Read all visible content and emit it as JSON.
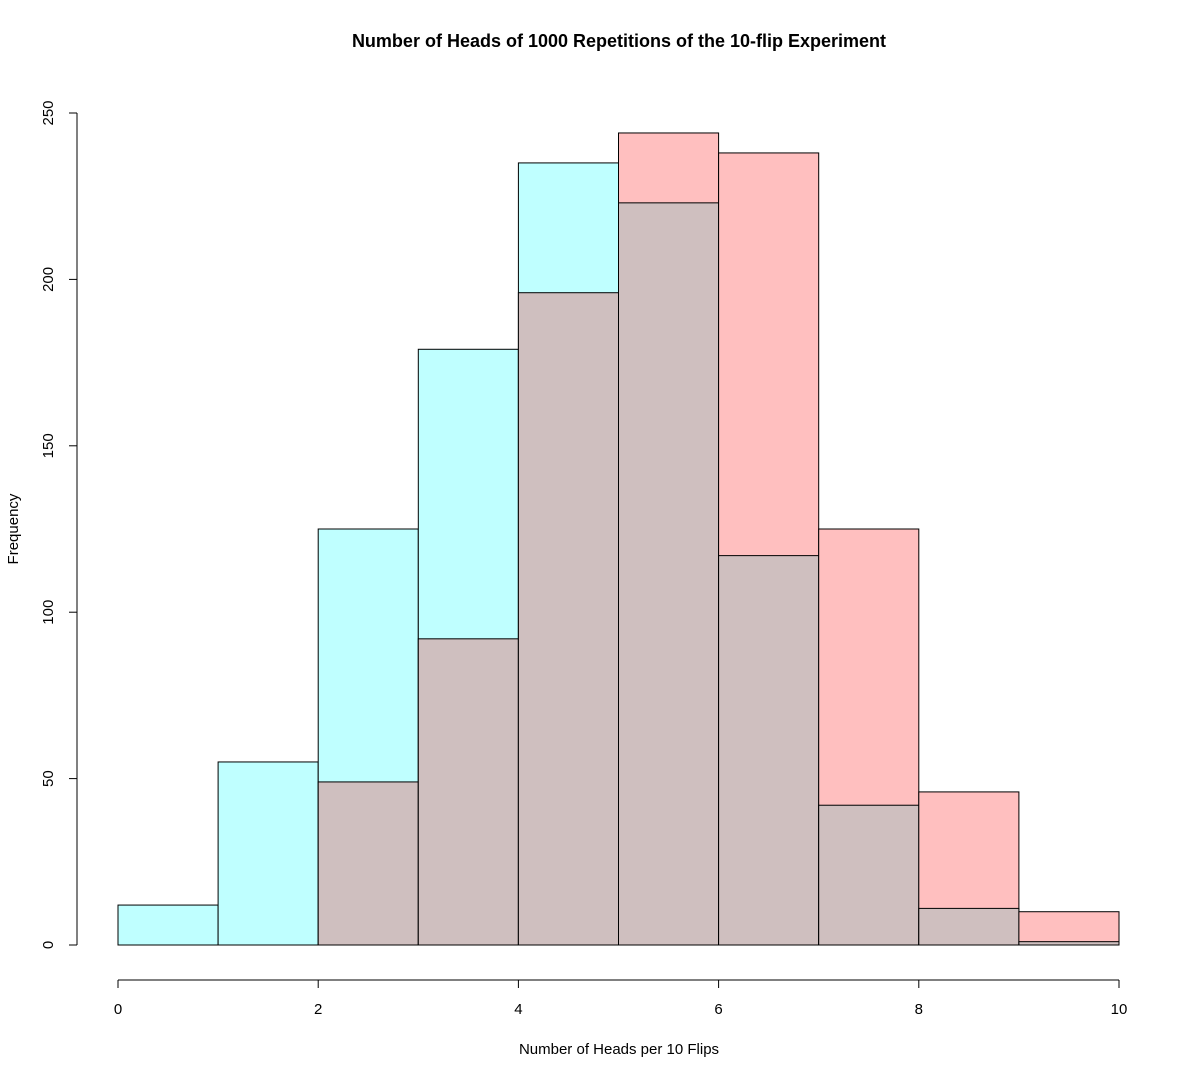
{
  "chart_data": {
    "type": "bar",
    "subtype": "overlaid-histogram",
    "title": "Number of Heads of 1000 Repetitions of the 10-flip Experiment",
    "xlabel": "Number of Heads per 10 Flips",
    "ylabel": "Frequency",
    "xlim": [
      0,
      10
    ],
    "ylim": [
      0,
      250
    ],
    "x_ticks": [
      0,
      2,
      4,
      6,
      8,
      10
    ],
    "y_ticks": [
      0,
      50,
      100,
      150,
      200,
      250
    ],
    "bin_edges": [
      0,
      1,
      2,
      3,
      4,
      5,
      6,
      7,
      8,
      9,
      10
    ],
    "series": [
      {
        "values": [
          12,
          55,
          125,
          179,
          235,
          223,
          117,
          42,
          11,
          1
        ],
        "color": "#bfffff"
      },
      {
        "values": [
          0,
          0,
          49,
          92,
          196,
          244,
          238,
          125,
          46,
          10
        ],
        "color": "#ffbfbf"
      }
    ],
    "overlap_color": "#cfbfbf",
    "grid": false,
    "legend": "none"
  }
}
